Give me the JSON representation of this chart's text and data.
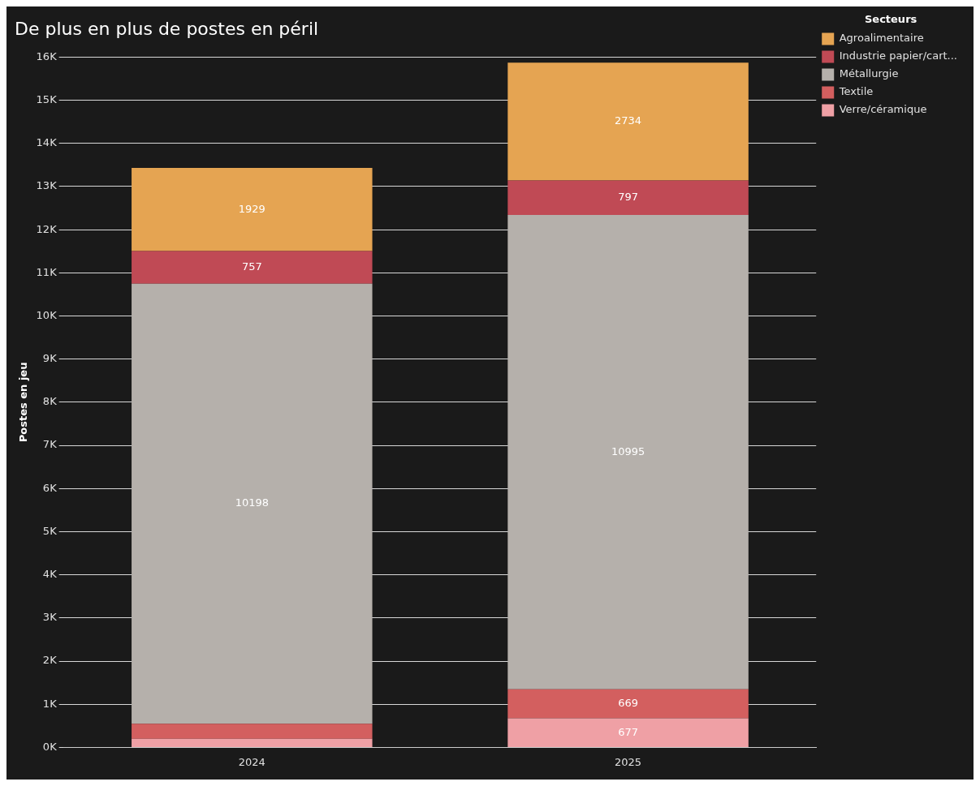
{
  "chart_data": {
    "type": "bar",
    "title": "De plus en plus de postes en péril",
    "ylabel": "Postes en jeu",
    "legend_title": "Secteurs",
    "categories": [
      "2024",
      "2025"
    ],
    "stacked": true,
    "series": [
      {
        "name": "Verre/céramique",
        "color": "#efa0a5",
        "values": [
          200,
          677
        ],
        "value_labels": [
          null,
          "677"
        ]
      },
      {
        "name": "Textile",
        "color": "#d35f5f",
        "values": [
          350,
          669
        ],
        "value_labels": [
          null,
          "669"
        ]
      },
      {
        "name": "Métallurgie",
        "color": "#b5b0ab",
        "values": [
          10198,
          10995
        ],
        "value_labels": [
          "10198",
          "10995"
        ]
      },
      {
        "name": "Industrie papier/cart...",
        "color": "#c04a55",
        "values": [
          757,
          797
        ],
        "value_labels": [
          "757",
          "797"
        ]
      },
      {
        "name": "Agroalimentaire",
        "color": "#e5a452",
        "values": [
          1929,
          2734
        ],
        "value_labels": [
          "1929",
          "2734"
        ]
      }
    ],
    "ylim": [
      0,
      16000
    ],
    "yticks": [
      {
        "value": 0,
        "label": "0K"
      },
      {
        "value": 1000,
        "label": "1K"
      },
      {
        "value": 2000,
        "label": "2K"
      },
      {
        "value": 3000,
        "label": "3K"
      },
      {
        "value": 4000,
        "label": "4K"
      },
      {
        "value": 5000,
        "label": "5K"
      },
      {
        "value": 6000,
        "label": "6K"
      },
      {
        "value": 7000,
        "label": "7K"
      },
      {
        "value": 8000,
        "label": "8K"
      },
      {
        "value": 9000,
        "label": "9K"
      },
      {
        "value": 10000,
        "label": "10K"
      },
      {
        "value": 11000,
        "label": "11K"
      },
      {
        "value": 12000,
        "label": "12K"
      },
      {
        "value": 13000,
        "label": "13K"
      },
      {
        "value": 14000,
        "label": "14K"
      },
      {
        "value": 15000,
        "label": "15K"
      },
      {
        "value": 16000,
        "label": "16K"
      }
    ],
    "grid": "y",
    "legend": "top right"
  }
}
